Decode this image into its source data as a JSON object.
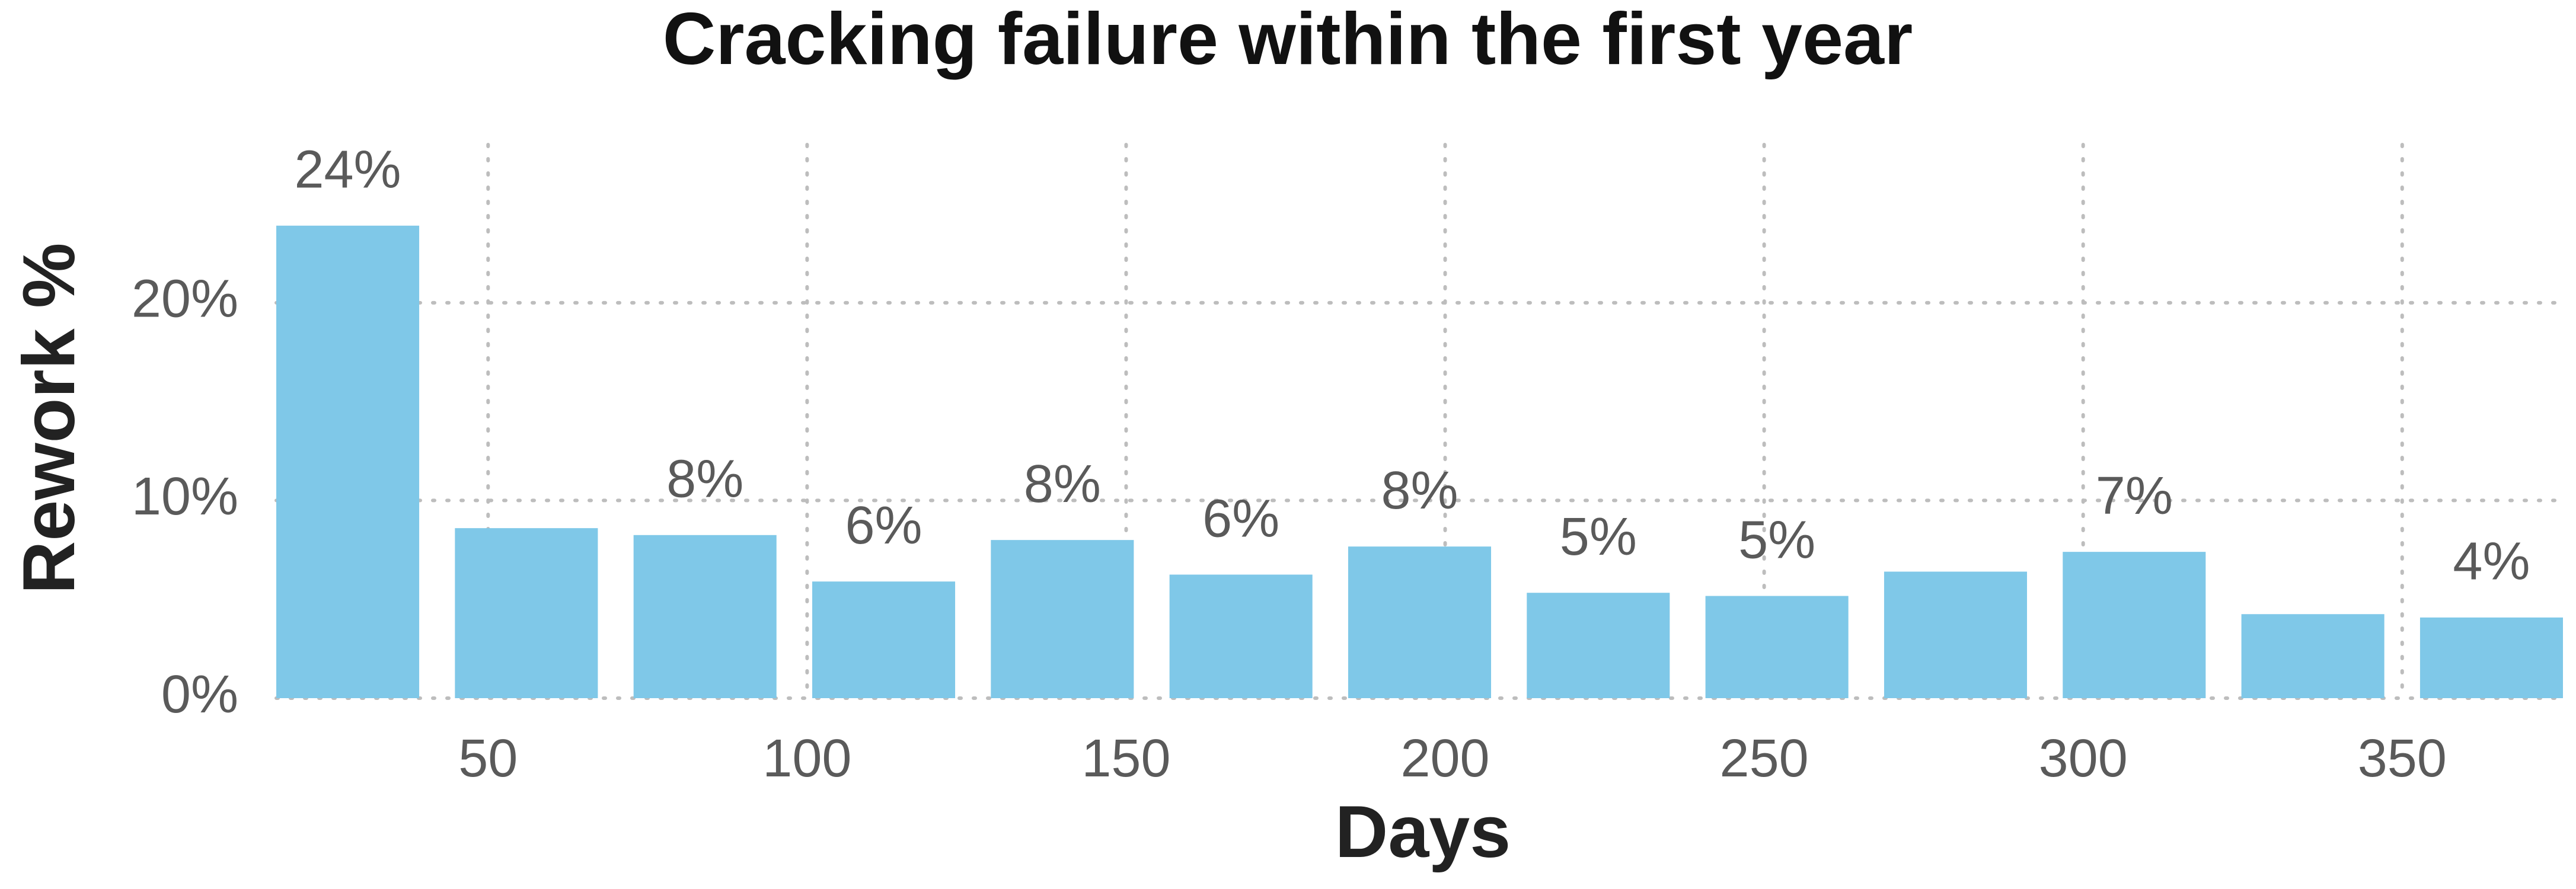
{
  "chart_data": {
    "type": "bar",
    "title": "Cracking failure within the first year",
    "x_label": "Days",
    "y_label": "Rework %",
    "x": [
      28,
      56,
      84,
      112,
      140,
      168,
      196,
      224,
      252,
      280,
      308,
      336,
      364
    ],
    "values": [
      23.9,
      8.6,
      8.25,
      5.9,
      8.0,
      6.25,
      7.67,
      5.33,
      5.17,
      6.4,
      7.4,
      4.25,
      4.08
    ],
    "value_labels": [
      "24%",
      null,
      "8%",
      "6%",
      "8%",
      "6%",
      "8%",
      "5%",
      "5%",
      null,
      "7%",
      null,
      "4%"
    ],
    "color": "#7fc8e8",
    "xlim": [
      16.8,
      375.2
    ],
    "xticks": [
      50,
      100,
      150,
      200,
      250,
      300,
      350
    ],
    "ylim": [
      0,
      28
    ],
    "yticks": [
      {
        "value": 0,
        "label": "0%"
      },
      {
        "value": 10,
        "label": "10%"
      },
      {
        "value": 20,
        "label": "20%"
      }
    ],
    "grid": true
  }
}
